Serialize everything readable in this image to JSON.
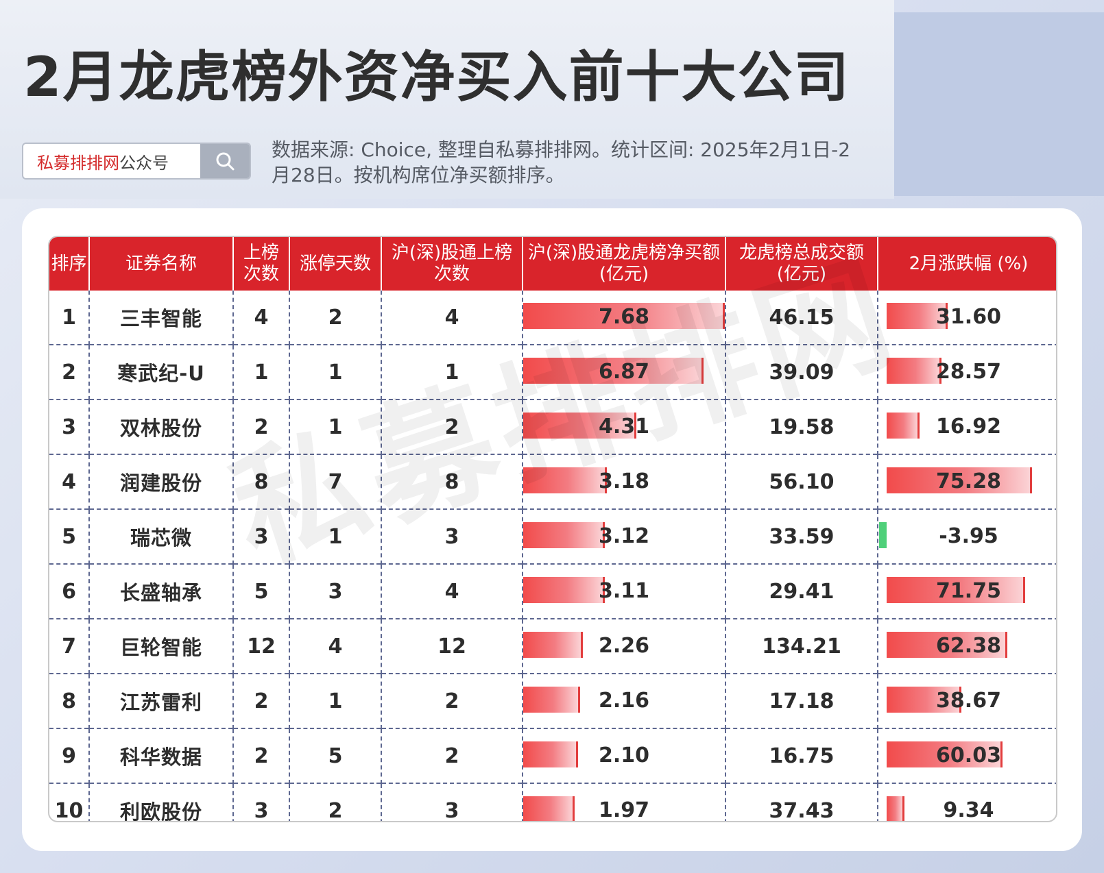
{
  "title": "2月龙虎榜外资净买入前十大公司",
  "search": {
    "brand": "私募排排网",
    "suffix": "公众号"
  },
  "source_note": "数据来源: Choice, 整理自私募排排网。统计区间: 2025年2月1日-2月28日。按机构席位净买额排序。",
  "watermark": "私募排排网",
  "table": {
    "headers": [
      "排序",
      "证券名称",
      "上榜次数",
      "涨停天数",
      "沪(深)股通上榜次数",
      "沪(深)股通龙虎榜净买额(亿元)",
      "龙虎榜总成交额(亿元)",
      "2月涨跌幅 (%)"
    ],
    "header_lines": [
      [
        "排序"
      ],
      [
        "证券名称"
      ],
      [
        "上榜",
        "次数"
      ],
      [
        "涨停天数"
      ],
      [
        "沪(深)股通上榜",
        "次数"
      ],
      [
        "沪(深)股通龙虎榜净买额",
        "(亿元)"
      ],
      [
        "龙虎榜总成交额",
        "(亿元)"
      ],
      [
        "2月涨跌幅 (%)"
      ]
    ],
    "rows": [
      {
        "rank": "1",
        "name": "三丰智能",
        "listings": "4",
        "limit_up": "2",
        "connect_listings": "4",
        "net_buy": "7.68",
        "turnover": "46.15",
        "change": "31.60"
      },
      {
        "rank": "2",
        "name": "寒武纪-U",
        "listings": "1",
        "limit_up": "1",
        "connect_listings": "1",
        "net_buy": "6.87",
        "turnover": "39.09",
        "change": "28.57"
      },
      {
        "rank": "3",
        "name": "双林股份",
        "listings": "2",
        "limit_up": "1",
        "connect_listings": "2",
        "net_buy": "4.31",
        "turnover": "19.58",
        "change": "16.92"
      },
      {
        "rank": "4",
        "name": "润建股份",
        "listings": "8",
        "limit_up": "7",
        "connect_listings": "8",
        "net_buy": "3.18",
        "turnover": "56.10",
        "change": "75.28"
      },
      {
        "rank": "5",
        "name": "瑞芯微",
        "listings": "3",
        "limit_up": "1",
        "connect_listings": "3",
        "net_buy": "3.12",
        "turnover": "33.59",
        "change": "-3.95"
      },
      {
        "rank": "6",
        "name": "长盛轴承",
        "listings": "5",
        "limit_up": "3",
        "connect_listings": "4",
        "net_buy": "3.11",
        "turnover": "29.41",
        "change": "71.75"
      },
      {
        "rank": "7",
        "name": "巨轮智能",
        "listings": "12",
        "limit_up": "4",
        "connect_listings": "12",
        "net_buy": "2.26",
        "turnover": "134.21",
        "change": "62.38"
      },
      {
        "rank": "8",
        "name": "江苏雷利",
        "listings": "2",
        "limit_up": "1",
        "connect_listings": "2",
        "net_buy": "2.16",
        "turnover": "17.18",
        "change": "38.67"
      },
      {
        "rank": "9",
        "name": "科华数据",
        "listings": "2",
        "limit_up": "5",
        "connect_listings": "2",
        "net_buy": "2.10",
        "turnover": "16.75",
        "change": "60.03"
      },
      {
        "rank": "10",
        "name": "利欧股份",
        "listings": "3",
        "limit_up": "2",
        "connect_listings": "3",
        "net_buy": "1.97",
        "turnover": "37.43",
        "change": "9.34"
      }
    ]
  },
  "colors": {
    "header_red": "#d9242b",
    "bar_red": "#f24b4b",
    "bar_green": "#4fd07a",
    "brand_red": "#d42b2b"
  }
}
